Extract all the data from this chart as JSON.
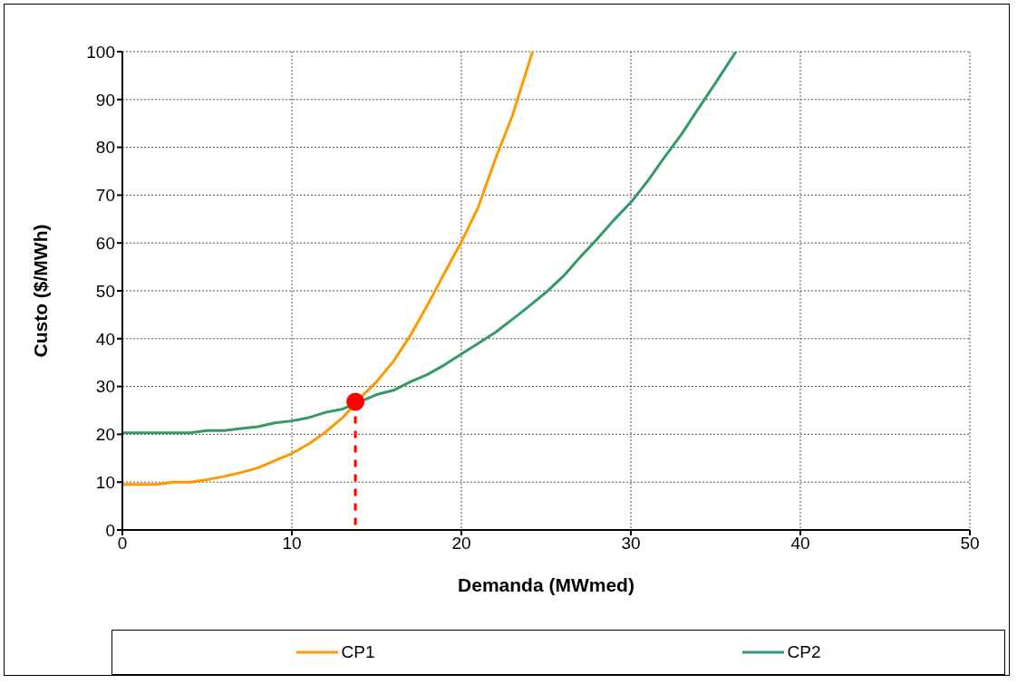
{
  "chart_data": {
    "type": "line",
    "xlabel": "Demanda (MWmed)",
    "ylabel": "Custo ($/MWh)",
    "xlim": [
      0,
      50
    ],
    "xticks": [
      0,
      10,
      20,
      30,
      40,
      50
    ],
    "ylim": [
      0,
      100
    ],
    "yticks": [
      0,
      10,
      20,
      30,
      40,
      50,
      60,
      70,
      80,
      90,
      100
    ],
    "grid": true,
    "legend": "bottom",
    "marker": "none",
    "line_style": "solid",
    "series": [
      {
        "name": "CP1",
        "color": "#ff9900",
        "x": [
          0,
          1,
          2,
          3,
          4,
          5,
          6,
          7,
          8,
          9,
          10,
          11,
          12,
          13,
          14,
          15,
          16,
          17,
          18,
          19,
          20,
          21,
          22,
          23,
          24.2
        ],
        "values": [
          9.5,
          9.5,
          9.5,
          10,
          10,
          10.5,
          11.2,
          12,
          13,
          14.5,
          16,
          18,
          20.5,
          23.5,
          27.5,
          31,
          35.3,
          40.7,
          47,
          53.7,
          60.2,
          67.5,
          77.5,
          86.5,
          100
        ]
      },
      {
        "name": "CP2",
        "color": "#339966",
        "x": [
          0,
          1,
          2,
          3,
          4,
          5,
          6,
          7,
          8,
          9,
          10,
          11,
          12,
          13,
          15,
          16,
          17,
          18,
          19,
          20,
          21,
          22,
          23,
          24,
          25,
          26,
          27,
          28,
          29,
          30,
          31,
          32,
          33,
          34,
          35,
          36.2
        ],
        "values": [
          20.3,
          20.3,
          20.3,
          20.3,
          20.3,
          20.8,
          20.8,
          21.2,
          21.6,
          22.4,
          22.8,
          23.5,
          24.6,
          25.3,
          28.3,
          29.2,
          31,
          32.5,
          34.5,
          36.8,
          39,
          41.3,
          44,
          46.8,
          49.7,
          53,
          57,
          60.8,
          64.8,
          68.5,
          73,
          78,
          82.8,
          88.2,
          93.5,
          100
        ]
      },
      {
        "type": "line",
        "color": "#ff0000",
        "line_style": "dashed",
        "x": [
          13.75,
          13.75
        ],
        "values": [
          26.8,
          1
        ]
      },
      {
        "type": "scatter",
        "color": "#ff0000",
        "marker": "circle",
        "x": [
          13.75
        ],
        "values": [
          26.8
        ]
      }
    ]
  }
}
